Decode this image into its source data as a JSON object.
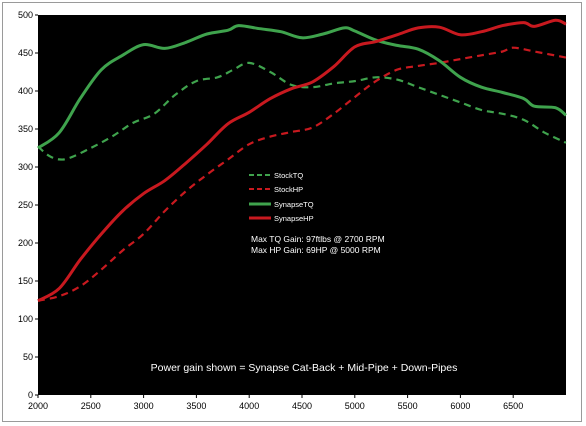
{
  "chart_data": {
    "type": "line",
    "title": "",
    "xlabel": "",
    "ylabel": "",
    "xlim": [
      2000,
      7000
    ],
    "ylim": [
      0,
      500
    ],
    "x_ticks": [
      "2000",
      "2500",
      "3000",
      "3500",
      "4000",
      "4500",
      "5000",
      "5500",
      "6000",
      "6500"
    ],
    "y_ticks": [
      "0",
      "50",
      "100",
      "150",
      "200",
      "250",
      "300",
      "350",
      "400",
      "450",
      "500"
    ],
    "grid": false,
    "legend_position": "center",
    "plot_background": "#000000",
    "series": [
      {
        "name": "StockTQ",
        "color": "#3fa34d",
        "style": "dashed",
        "points": [
          [
            2000,
            327
          ],
          [
            2100,
            315
          ],
          [
            2200,
            310
          ],
          [
            2300,
            312
          ],
          [
            2500,
            325
          ],
          [
            2700,
            340
          ],
          [
            2900,
            358
          ],
          [
            3100,
            370
          ],
          [
            3300,
            395
          ],
          [
            3500,
            413
          ],
          [
            3700,
            418
          ],
          [
            3850,
            428
          ],
          [
            4000,
            437
          ],
          [
            4200,
            425
          ],
          [
            4400,
            408
          ],
          [
            4600,
            405
          ],
          [
            4800,
            410
          ],
          [
            5000,
            413
          ],
          [
            5200,
            418
          ],
          [
            5400,
            415
          ],
          [
            5600,
            405
          ],
          [
            5800,
            395
          ],
          [
            6000,
            385
          ],
          [
            6200,
            375
          ],
          [
            6400,
            370
          ],
          [
            6600,
            362
          ],
          [
            6800,
            345
          ],
          [
            7000,
            332
          ]
        ]
      },
      {
        "name": "StockHP",
        "color": "#c8191f",
        "style": "dashed",
        "points": [
          [
            2000,
            124
          ],
          [
            2200,
            130
          ],
          [
            2400,
            143
          ],
          [
            2600,
            165
          ],
          [
            2800,
            190
          ],
          [
            3000,
            212
          ],
          [
            3200,
            242
          ],
          [
            3400,
            268
          ],
          [
            3600,
            290
          ],
          [
            3800,
            310
          ],
          [
            4000,
            330
          ],
          [
            4200,
            340
          ],
          [
            4400,
            346
          ],
          [
            4600,
            352
          ],
          [
            4800,
            370
          ],
          [
            5000,
            392
          ],
          [
            5200,
            413
          ],
          [
            5400,
            428
          ],
          [
            5600,
            433
          ],
          [
            5800,
            437
          ],
          [
            6000,
            442
          ],
          [
            6200,
            447
          ],
          [
            6400,
            452
          ],
          [
            6500,
            457
          ],
          [
            6700,
            452
          ],
          [
            7000,
            444
          ]
        ]
      },
      {
        "name": "SynapseTQ",
        "color": "#3fa34d",
        "style": "solid",
        "points": [
          [
            2000,
            325
          ],
          [
            2200,
            345
          ],
          [
            2400,
            390
          ],
          [
            2600,
            428
          ],
          [
            2800,
            447
          ],
          [
            3000,
            461
          ],
          [
            3200,
            456
          ],
          [
            3400,
            464
          ],
          [
            3600,
            475
          ],
          [
            3800,
            480
          ],
          [
            3900,
            486
          ],
          [
            4100,
            482
          ],
          [
            4300,
            478
          ],
          [
            4500,
            470
          ],
          [
            4700,
            475
          ],
          [
            4900,
            483
          ],
          [
            5000,
            479
          ],
          [
            5200,
            467
          ],
          [
            5400,
            460
          ],
          [
            5600,
            455
          ],
          [
            5800,
            440
          ],
          [
            6000,
            418
          ],
          [
            6200,
            405
          ],
          [
            6400,
            398
          ],
          [
            6600,
            390
          ],
          [
            6700,
            380
          ],
          [
            6900,
            378
          ],
          [
            7000,
            368
          ]
        ]
      },
      {
        "name": "SynapseHP",
        "color": "#c8191f",
        "style": "solid",
        "points": [
          [
            2000,
            124
          ],
          [
            2200,
            140
          ],
          [
            2400,
            178
          ],
          [
            2600,
            212
          ],
          [
            2800,
            242
          ],
          [
            3000,
            265
          ],
          [
            3200,
            282
          ],
          [
            3400,
            305
          ],
          [
            3600,
            330
          ],
          [
            3800,
            357
          ],
          [
            4000,
            372
          ],
          [
            4200,
            390
          ],
          [
            4400,
            403
          ],
          [
            4600,
            412
          ],
          [
            4800,
            432
          ],
          [
            5000,
            458
          ],
          [
            5200,
            465
          ],
          [
            5400,
            474
          ],
          [
            5600,
            483
          ],
          [
            5800,
            484
          ],
          [
            6000,
            474
          ],
          [
            6200,
            478
          ],
          [
            6400,
            486
          ],
          [
            6600,
            490
          ],
          [
            6700,
            485
          ],
          [
            6900,
            493
          ],
          [
            7000,
            488
          ]
        ]
      }
    ],
    "annotations": [
      "Max TQ Gain: 97ftlbs @ 2700 RPM",
      "Max HP Gain: 69HP @ 5000 RPM",
      "Power gain shown = Synapse Cat-Back + Mid-Pipe + Down-Pipes"
    ]
  }
}
